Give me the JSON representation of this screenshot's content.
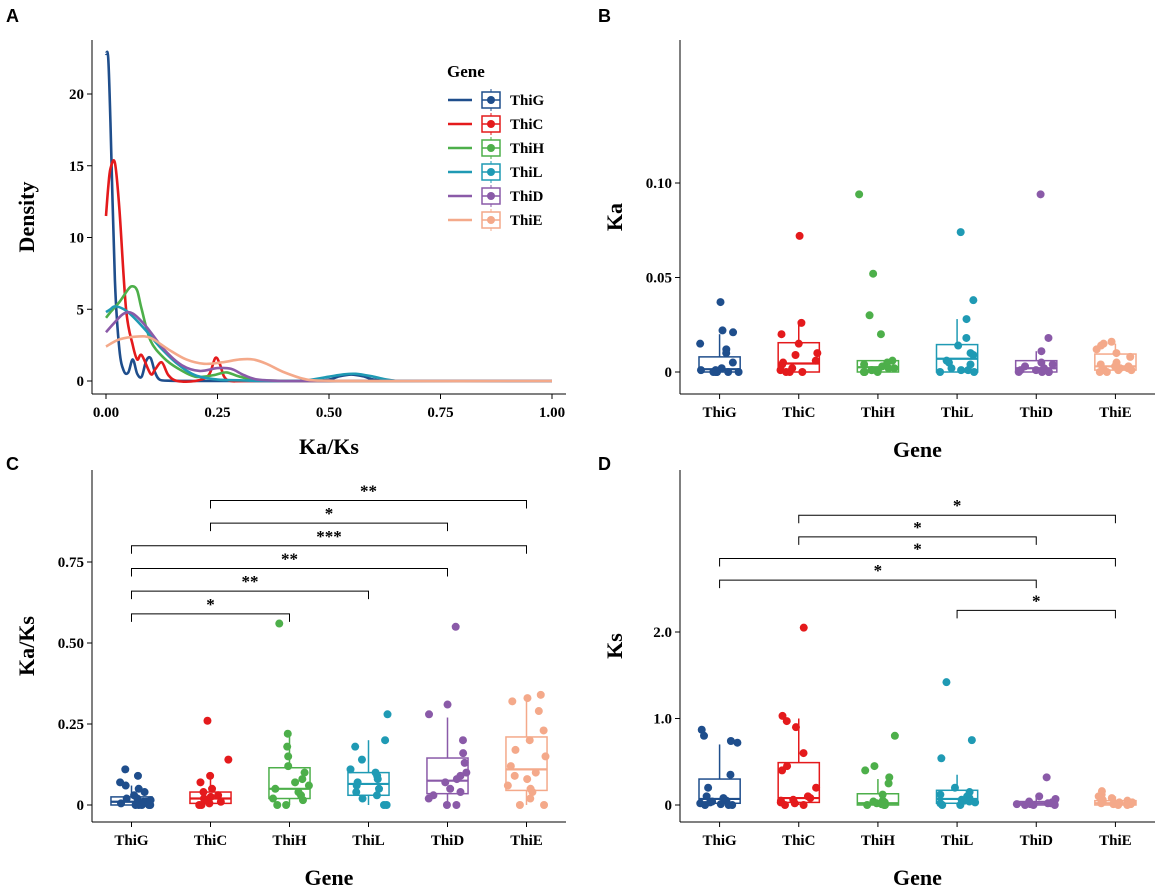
{
  "colors": {
    "ThiG": "#1f4e8c",
    "ThiC": "#e41a1c",
    "ThiH": "#4daf4a",
    "ThiL": "#1f9ab4",
    "ThiD": "#8a5aa8",
    "ThiE": "#f4a98a"
  },
  "chart_data": [
    {
      "panel": "A",
      "type": "line",
      "xlabel": "Ka/Ks",
      "ylabel": "Density",
      "xlim": [
        0,
        1
      ],
      "ylim": [
        -0.5,
        23.8
      ],
      "xticks": [
        "0.00",
        "0.25",
        "0.50",
        "0.75",
        "1.00"
      ],
      "xtick_values": [
        0,
        0.25,
        0.5,
        0.75,
        1.0
      ],
      "yticks": [
        "0",
        "5",
        "10",
        "15",
        "20"
      ],
      "ytick_values": [
        0,
        5,
        10,
        15,
        20
      ],
      "legend": {
        "title": "Gene",
        "entries": [
          "ThiG",
          "ThiC",
          "ThiH",
          "ThiL",
          "ThiD",
          "ThiE"
        ],
        "position": "top-right"
      },
      "series": [
        {
          "name": "ThiG",
          "x": [
            0,
            0.005,
            0.01,
            0.02,
            0.03,
            0.04,
            0.05,
            0.06,
            0.07,
            0.08,
            0.09,
            0.1,
            0.11,
            0.12,
            0.14,
            0.2,
            0.3,
            0.45,
            0.5,
            0.52,
            0.55,
            0.58,
            0.6,
            0.65,
            0.75,
            1.0
          ],
          "y": [
            22.8,
            22.5,
            18,
            7,
            2.2,
            0.7,
            0.6,
            1.5,
            0.5,
            0.3,
            1.4,
            1.6,
            0.6,
            0.1,
            0.02,
            0,
            0,
            0,
            0.1,
            0.3,
            0.45,
            0.3,
            0.1,
            0,
            0,
            0
          ]
        },
        {
          "name": "ThiC",
          "x": [
            0,
            0.005,
            0.01,
            0.02,
            0.03,
            0.045,
            0.06,
            0.07,
            0.08,
            0.1,
            0.11,
            0.125,
            0.14,
            0.16,
            0.2,
            0.23,
            0.245,
            0.255,
            0.265,
            0.28,
            0.32,
            0.5,
            1.0
          ],
          "y": [
            11.5,
            13.5,
            14.8,
            15.2,
            12,
            5,
            2.5,
            1.5,
            1.8,
            0.5,
            0.8,
            1.3,
            0.4,
            0,
            0,
            0.4,
            1.6,
            1.2,
            0.3,
            0,
            0,
            0,
            0
          ]
        },
        {
          "name": "ThiH",
          "x": [
            0,
            0.01,
            0.03,
            0.05,
            0.06,
            0.07,
            0.08,
            0.1,
            0.13,
            0.16,
            0.2,
            0.24,
            0.27,
            0.3,
            0.35,
            0.5,
            1.0
          ],
          "y": [
            4.4,
            4.8,
            5.5,
            6.4,
            6.6,
            6.3,
            5,
            2.8,
            1.6,
            0.9,
            0.3,
            0.4,
            0.6,
            0.3,
            0.05,
            0,
            0
          ]
        },
        {
          "name": "ThiL",
          "x": [
            0,
            0.01,
            0.02,
            0.04,
            0.06,
            0.09,
            0.12,
            0.16,
            0.2,
            0.25,
            0.3,
            0.35,
            0.4,
            0.45,
            0.5,
            0.53,
            0.56,
            0.6,
            0.64,
            0.7,
            1.0
          ],
          "y": [
            4.8,
            5,
            5.2,
            5,
            4.5,
            3.5,
            2.4,
            1.2,
            0.4,
            0.1,
            0.05,
            0,
            0,
            0.05,
            0.3,
            0.45,
            0.5,
            0.3,
            0.05,
            0,
            0
          ]
        },
        {
          "name": "ThiD",
          "x": [
            0,
            0.02,
            0.04,
            0.06,
            0.09,
            0.13,
            0.17,
            0.21,
            0.25,
            0.28,
            0.31,
            0.34,
            0.4,
            0.5,
            1.0
          ],
          "y": [
            3.4,
            4.1,
            4.7,
            4.7,
            3.8,
            2.2,
            1.1,
            0.7,
            0.9,
            0.85,
            0.4,
            0.1,
            0,
            0,
            0
          ]
        },
        {
          "name": "ThiE",
          "x": [
            0,
            0.03,
            0.07,
            0.1,
            0.14,
            0.18,
            0.22,
            0.26,
            0.3,
            0.33,
            0.36,
            0.4,
            0.45,
            0.5,
            0.6,
            1.0
          ],
          "y": [
            2.4,
            2.9,
            3.1,
            3.0,
            2.2,
            1.5,
            1.2,
            1.3,
            1.5,
            1.5,
            1.2,
            0.6,
            0.1,
            0.02,
            0,
            0
          ]
        }
      ]
    },
    {
      "panel": "B",
      "type": "box",
      "xlabel": "Gene",
      "ylabel": "Ka",
      "categories": [
        "ThiG",
        "ThiC",
        "ThiH",
        "ThiL",
        "ThiD",
        "ThiE"
      ],
      "ylim": [
        -0.015,
        0.175
      ],
      "yticks": [
        "0",
        "0.05",
        "0.10"
      ],
      "ytick_values": [
        0,
        0.05,
        0.1
      ],
      "boxes": [
        {
          "q1": 0.0,
          "median": 0.0015,
          "q3": 0.008,
          "whisker_low": 0.0,
          "whisker_high": 0.02
        },
        {
          "q1": 0.0,
          "median": 0.0045,
          "q3": 0.0155,
          "whisker_low": 0.0,
          "whisker_high": 0.026
        },
        {
          "q1": 0.0,
          "median": 0.0025,
          "q3": 0.006,
          "whisker_low": 0.0,
          "whisker_high": 0.006
        },
        {
          "q1": 0.0,
          "median": 0.007,
          "q3": 0.0145,
          "whisker_low": 0.0,
          "whisker_high": 0.028
        },
        {
          "q1": 0.0,
          "median": 0.002,
          "q3": 0.006,
          "whisker_low": 0.0,
          "whisker_high": 0.011
        },
        {
          "q1": 0.001,
          "median": 0.003,
          "q3": 0.0095,
          "whisker_low": 0.0,
          "whisker_high": 0.015
        }
      ],
      "points": [
        [
          0.037,
          0.022,
          0.021,
          0.015,
          0.012,
          0.01,
          0.005,
          0.002,
          0.001,
          0.0,
          0.0,
          0.0,
          0.0,
          0.0,
          0.001,
          0.0
        ],
        [
          0.072,
          0.026,
          0.02,
          0.015,
          0.01,
          0.009,
          0.006,
          0.004,
          0.002,
          0.001,
          0.0,
          0.0,
          0.005,
          0.0
        ],
        [
          0.094,
          0.052,
          0.03,
          0.02,
          0.006,
          0.005,
          0.004,
          0.003,
          0.002,
          0.001,
          0.001,
          0.0,
          0.0,
          0.0,
          0.0,
          0.001,
          0.002
        ],
        [
          0.074,
          0.038,
          0.028,
          0.018,
          0.014,
          0.01,
          0.009,
          0.006,
          0.005,
          0.004,
          0.002,
          0.001,
          0.0,
          0.0,
          0.001
        ],
        [
          0.094,
          0.018,
          0.011,
          0.005,
          0.004,
          0.002,
          0.001,
          0.001,
          0.0,
          0.0,
          0.0,
          0.0,
          0.003
        ],
        [
          0.016,
          0.015,
          0.014,
          0.012,
          0.01,
          0.008,
          0.005,
          0.004,
          0.003,
          0.002,
          0.002,
          0.001,
          0.001,
          0.0,
          0.0,
          0.001,
          0.003
        ]
      ]
    },
    {
      "panel": "C",
      "type": "box",
      "xlabel": "Gene",
      "ylabel": "Ka/Ks",
      "categories": [
        "ThiG",
        "ThiC",
        "ThiH",
        "ThiL",
        "ThiD",
        "ThiE"
      ],
      "ylim": [
        -0.04,
        1.0
      ],
      "yticks": [
        "0",
        "0.25",
        "0.50",
        "0.75"
      ],
      "ytick_values": [
        0,
        0.25,
        0.5,
        0.75
      ],
      "boxes": [
        {
          "q1": 0.0,
          "median": 0.01,
          "q3": 0.025,
          "whisker_low": 0.0,
          "whisker_high": 0.06
        },
        {
          "q1": 0.005,
          "median": 0.02,
          "q3": 0.04,
          "whisker_low": 0.0,
          "whisker_high": 0.08
        },
        {
          "q1": 0.02,
          "median": 0.05,
          "q3": 0.115,
          "whisker_low": 0.0,
          "whisker_high": 0.22
        },
        {
          "q1": 0.03,
          "median": 0.065,
          "q3": 0.1,
          "whisker_low": 0.0,
          "whisker_high": 0.2
        },
        {
          "q1": 0.035,
          "median": 0.075,
          "q3": 0.145,
          "whisker_low": 0.0,
          "whisker_high": 0.27
        },
        {
          "q1": 0.045,
          "median": 0.11,
          "q3": 0.21,
          "whisker_low": 0.0,
          "whisker_high": 0.34
        }
      ],
      "points": [
        [
          0.11,
          0.09,
          0.07,
          0.06,
          0.05,
          0.04,
          0.03,
          0.02,
          0.02,
          0.01,
          0.01,
          0.0,
          0.0,
          0.0,
          0.0,
          0.005,
          0.015,
          0.0
        ],
        [
          0.26,
          0.14,
          0.09,
          0.07,
          0.05,
          0.04,
          0.03,
          0.025,
          0.02,
          0.01,
          0.005,
          0.0,
          0.0,
          0.015
        ],
        [
          0.56,
          0.22,
          0.18,
          0.15,
          0.12,
          0.1,
          0.08,
          0.06,
          0.05,
          0.04,
          0.03,
          0.02,
          0.0,
          0.0,
          0.07,
          0.015
        ],
        [
          0.28,
          0.2,
          0.18,
          0.14,
          0.11,
          0.1,
          0.09,
          0.08,
          0.07,
          0.06,
          0.05,
          0.04,
          0.03,
          0.02,
          0.0,
          0.0
        ],
        [
          0.55,
          0.31,
          0.28,
          0.2,
          0.16,
          0.13,
          0.1,
          0.09,
          0.08,
          0.07,
          0.05,
          0.04,
          0.03,
          0.02,
          0.0,
          0.0
        ],
        [
          0.34,
          0.33,
          0.32,
          0.29,
          0.23,
          0.2,
          0.17,
          0.15,
          0.12,
          0.1,
          0.09,
          0.08,
          0.06,
          0.05,
          0.04,
          0.02,
          0.0,
          0.0
        ]
      ],
      "significance": [
        {
          "from": "ThiC",
          "to": "ThiE",
          "level": 0.94,
          "label": "**"
        },
        {
          "from": "ThiC",
          "to": "ThiD",
          "level": 0.87,
          "label": "*"
        },
        {
          "from": "ThiG",
          "to": "ThiE",
          "level": 0.8,
          "label": "***"
        },
        {
          "from": "ThiG",
          "to": "ThiD",
          "level": 0.73,
          "label": "**"
        },
        {
          "from": "ThiG",
          "to": "ThiL",
          "level": 0.66,
          "label": "**"
        },
        {
          "from": "ThiG",
          "to": "ThiH",
          "level": 0.59,
          "label": "*"
        }
      ]
    },
    {
      "panel": "D",
      "type": "box",
      "xlabel": "Gene",
      "ylabel": "Ks",
      "categories": [
        "ThiG",
        "ThiC",
        "ThiH",
        "ThiL",
        "ThiD",
        "ThiE"
      ],
      "ylim": [
        -0.2,
        3.7
      ],
      "yticks": [
        "0",
        "1.0",
        "2.0"
      ],
      "ytick_values": [
        0,
        1,
        2
      ],
      "boxes": [
        {
          "q1": 0.02,
          "median": 0.07,
          "q3": 0.3,
          "whisker_low": 0.0,
          "whisker_high": 0.7
        },
        {
          "q1": 0.03,
          "median": 0.08,
          "q3": 0.49,
          "whisker_low": 0.0,
          "whisker_high": 1.0
        },
        {
          "q1": 0.0,
          "median": 0.02,
          "q3": 0.13,
          "whisker_low": 0.0,
          "whisker_high": 0.3
        },
        {
          "q1": 0.02,
          "median": 0.07,
          "q3": 0.17,
          "whisker_low": 0.0,
          "whisker_high": 0.35
        },
        {
          "q1": 0.0,
          "median": 0.02,
          "q3": 0.04,
          "whisker_low": 0.0,
          "whisker_high": 0.08
        },
        {
          "q1": 0.0,
          "median": 0.02,
          "q3": 0.05,
          "whisker_low": 0.0,
          "whisker_high": 0.1
        }
      ],
      "points": [
        [
          0.87,
          0.8,
          0.74,
          0.72,
          0.35,
          0.2,
          0.1,
          0.08,
          0.05,
          0.04,
          0.02,
          0.0,
          0.0,
          0.0,
          0.01,
          0.03
        ],
        [
          2.05,
          1.03,
          0.97,
          0.9,
          0.6,
          0.45,
          0.4,
          0.2,
          0.1,
          0.06,
          0.05,
          0.03,
          0.0,
          0.0,
          0.02,
          0.08
        ],
        [
          0.8,
          0.45,
          0.4,
          0.32,
          0.25,
          0.12,
          0.05,
          0.03,
          0.02,
          0.01,
          0.0,
          0.0,
          0.0,
          0.01,
          0.04
        ],
        [
          1.42,
          0.75,
          0.54,
          0.2,
          0.15,
          0.12,
          0.1,
          0.08,
          0.06,
          0.05,
          0.03,
          0.02,
          0.0,
          0.0,
          0.04
        ],
        [
          0.32,
          0.1,
          0.07,
          0.05,
          0.04,
          0.03,
          0.02,
          0.01,
          0.0,
          0.0,
          0.0,
          0.02,
          0.01
        ],
        [
          0.16,
          0.12,
          0.1,
          0.08,
          0.06,
          0.05,
          0.04,
          0.03,
          0.02,
          0.01,
          0.0,
          0.0,
          0.02,
          0.03,
          0.01
        ]
      ],
      "significance": [
        {
          "from": "ThiC",
          "to": "ThiE",
          "level": 3.35,
          "label": "*"
        },
        {
          "from": "ThiC",
          "to": "ThiD",
          "level": 3.1,
          "label": "*"
        },
        {
          "from": "ThiG",
          "to": "ThiE",
          "level": 2.85,
          "label": "*"
        },
        {
          "from": "ThiG",
          "to": "ThiD",
          "level": 2.6,
          "label": "*"
        },
        {
          "from": "ThiL",
          "to": "ThiE",
          "level": 2.25,
          "label": "*"
        }
      ]
    }
  ]
}
